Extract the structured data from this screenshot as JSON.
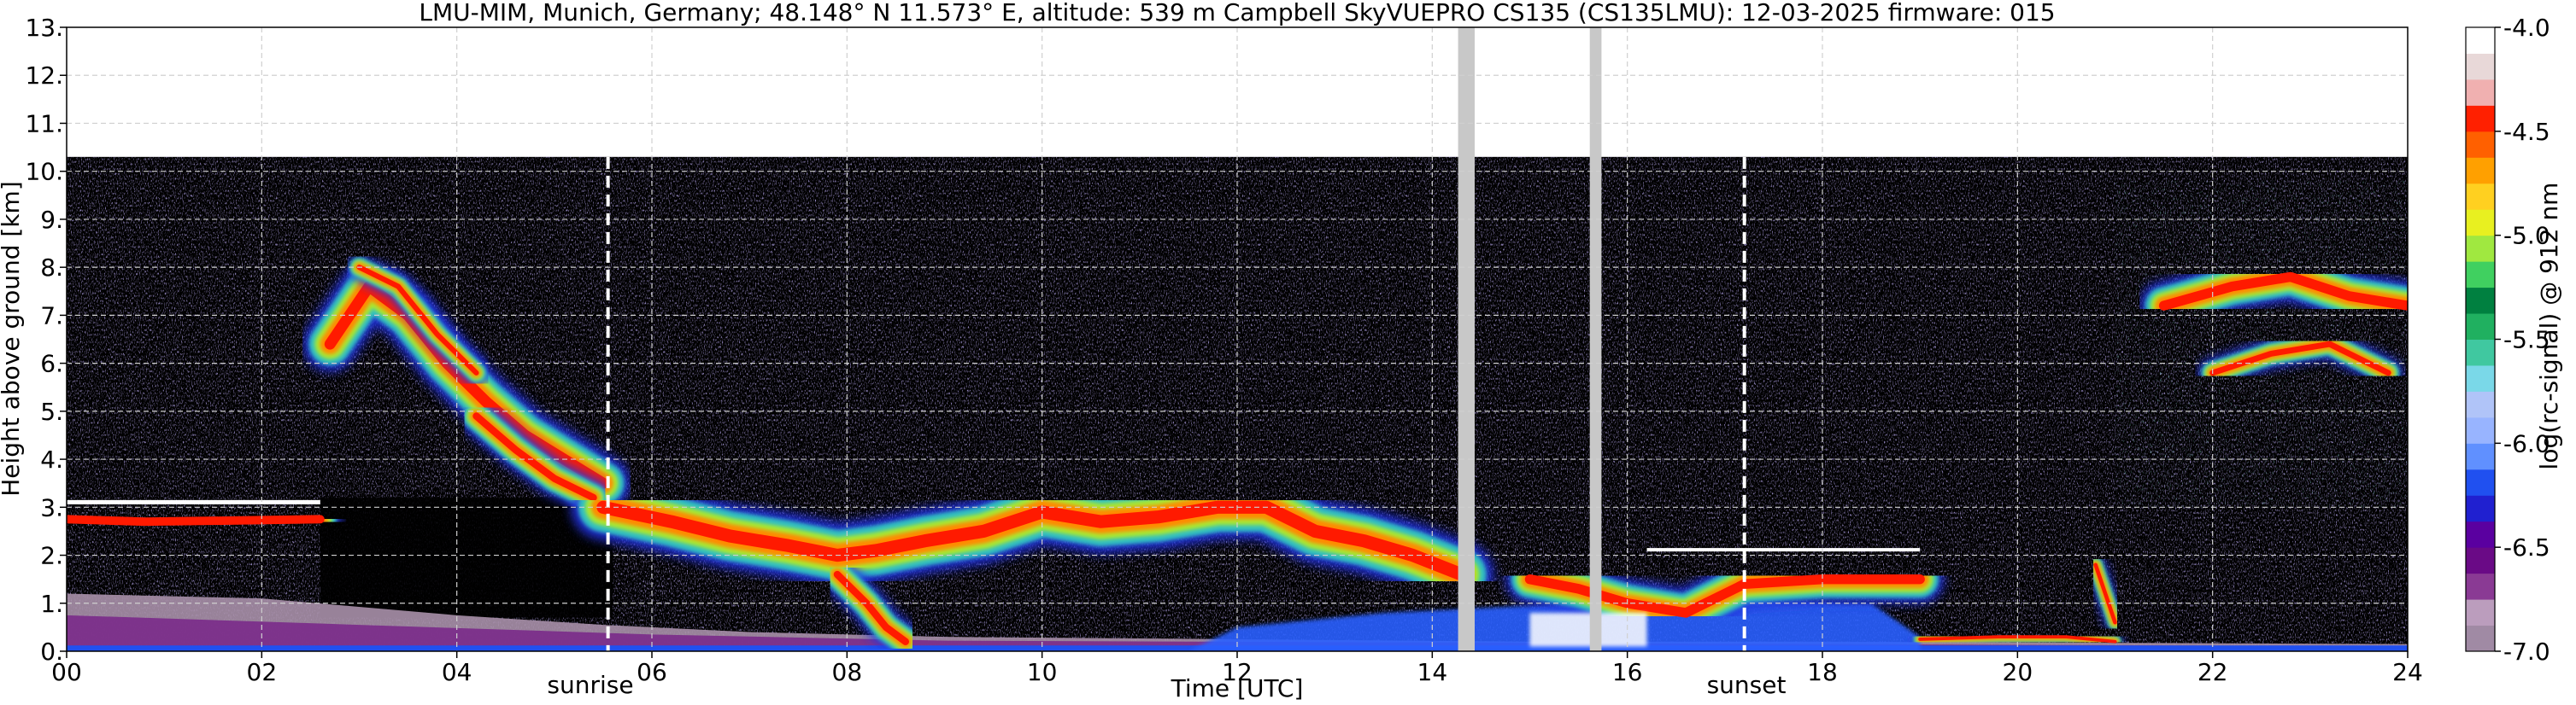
{
  "chart_data": [
    {
      "type": "heatmap",
      "title": "LMU-MIM, Munich, Germany; 48.148° N 11.573° E, altitude: 539 m    Campbell SkyVUEPRO CS135 (CS135LMU): 12-03-2025    firmware: 015",
      "xlabel": "Time [UTC]",
      "ylabel": "Height above ground [km]",
      "xlim": [
        0,
        24
      ],
      "ylim": [
        0,
        13
      ],
      "x_ticks": [
        "00",
        "02",
        "04",
        "06",
        "08",
        "10",
        "12",
        "14",
        "16",
        "18",
        "20",
        "22",
        "24"
      ],
      "y_ticks": [
        "0.",
        "1.",
        "2.",
        "3.",
        "4.",
        "5.",
        "6.",
        "7.",
        "8.",
        "9.",
        "10.",
        "11.",
        "12.",
        "13."
      ],
      "grid": true,
      "data_top_km": 10.3,
      "markers": [
        {
          "label": "sunrise",
          "time": 5.55
        },
        {
          "label": "sunset",
          "time": 17.2
        }
      ],
      "missing_data_times": [
        14.3,
        14.35,
        14.4,
        15.65,
        15.7
      ],
      "layers": [
        {
          "description_level": "high",
          "t_start": 0.0,
          "t_end": 2.6,
          "h_bottom": 2.2,
          "h_top": 3.2,
          "log_signal": -4.7
        },
        {
          "t_start": 2.6,
          "t_end": 5.5,
          "h_bottom": 3.5,
          "h_top": 8.5,
          "log_signal": -4.8
        },
        {
          "t_start": 5.5,
          "t_end": 9.0,
          "h_bottom": 1.5,
          "h_top": 3.5,
          "log_signal": -4.6
        },
        {
          "t_start": 9.0,
          "t_end": 14.5,
          "h_bottom": 1.5,
          "h_top": 3.5,
          "log_signal": -4.6
        },
        {
          "t_start": 15.0,
          "t_end": 19.0,
          "h_bottom": 0.3,
          "h_top": 2.2,
          "log_signal": -4.5
        },
        {
          "t_start": 19.0,
          "t_end": 21.0,
          "h_bottom": 0.1,
          "h_top": 0.5,
          "log_signal": -4.6
        },
        {
          "t_start": 21.0,
          "t_end": 24.0,
          "h_bottom": 3.5,
          "h_top": 9.0,
          "log_signal": -5.3
        }
      ]
    }
  ],
  "colorbar": {
    "label": "log(rc-signal) @ 912 nm",
    "ticks": [
      "-4.0",
      "-4.5",
      "-5.0",
      "-5.5",
      "-6.0",
      "-6.5",
      "-7.0"
    ],
    "range": [
      -7.0,
      -4.0
    ],
    "colors": [
      "#a08aa4",
      "#bb9dbd",
      "#8a3a94",
      "#6a0a86",
      "#5a00a0",
      "#2020d0",
      "#2050f0",
      "#6090ff",
      "#98b4ff",
      "#b0c4f8",
      "#7ad8e8",
      "#40c8a0",
      "#20b060",
      "#008040",
      "#40d060",
      "#a0e840",
      "#e8f020",
      "#ffd020",
      "#ffa000",
      "#ff6000",
      "#ff2000",
      "#f0b0b0",
      "#e8d8d8",
      "#ffffff"
    ]
  }
}
